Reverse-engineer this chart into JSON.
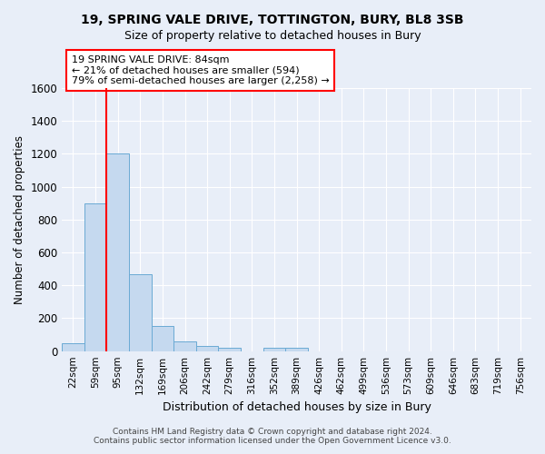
{
  "title1": "19, SPRING VALE DRIVE, TOTTINGTON, BURY, BL8 3SB",
  "title2": "Size of property relative to detached houses in Bury",
  "xlabel": "Distribution of detached houses by size in Bury",
  "ylabel": "Number of detached properties",
  "categories": [
    "22sqm",
    "59sqm",
    "95sqm",
    "132sqm",
    "169sqm",
    "206sqm",
    "242sqm",
    "279sqm",
    "316sqm",
    "352sqm",
    "389sqm",
    "426sqm",
    "462sqm",
    "499sqm",
    "536sqm",
    "573sqm",
    "609sqm",
    "646sqm",
    "683sqm",
    "719sqm",
    "756sqm"
  ],
  "values": [
    50,
    900,
    1200,
    470,
    155,
    60,
    30,
    20,
    0,
    20,
    20,
    0,
    0,
    0,
    0,
    0,
    0,
    0,
    0,
    0,
    0
  ],
  "bar_color": "#c5d9ef",
  "bar_edge_color": "#6aaad4",
  "annotation_text": "19 SPRING VALE DRIVE: 84sqm\n← 21% of detached houses are smaller (594)\n79% of semi-detached houses are larger (2,258) →",
  "annotation_box_facecolor": "white",
  "annotation_box_edgecolor": "red",
  "vline_color": "red",
  "ylim": [
    0,
    1600
  ],
  "yticks": [
    0,
    200,
    400,
    600,
    800,
    1000,
    1200,
    1400,
    1600
  ],
  "background_color": "#e8eef8",
  "grid_color": "white",
  "footer1": "Contains HM Land Registry data © Crown copyright and database right 2024.",
  "footer2": "Contains public sector information licensed under the Open Government Licence v3.0."
}
